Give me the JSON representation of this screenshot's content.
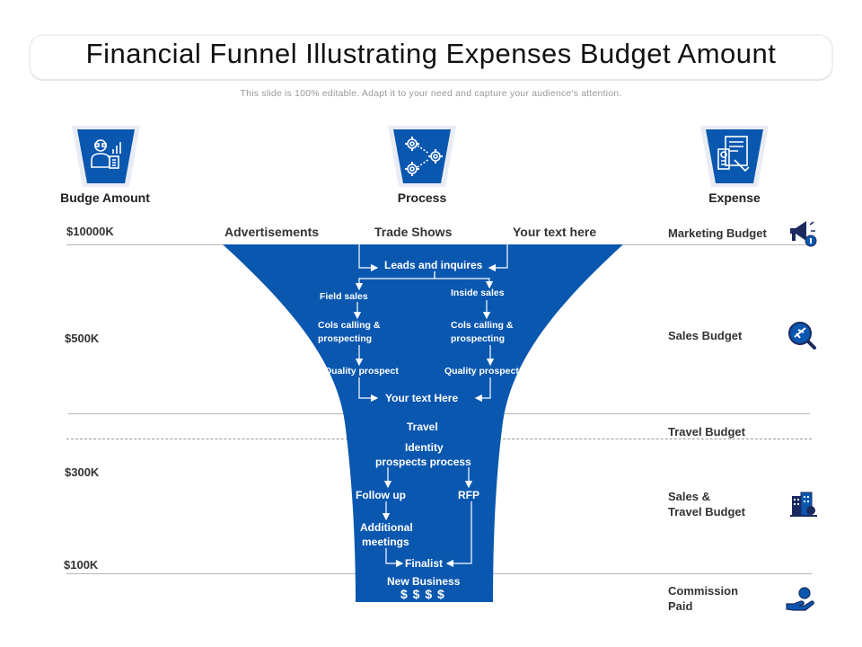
{
  "title": "Financial Funnel Illustrating Expenses Budget Amount",
  "subtitle": "This slide is 100% editable. Adapt it to your need and capture your audience's attention.",
  "columns": {
    "budget": "Budge Amount",
    "process": "Process",
    "expense": "Expense"
  },
  "amounts": [
    "$10000K",
    "$500K",
    "$300K",
    "$100K"
  ],
  "top_row": [
    "Advertisements",
    "Trade Shows",
    "Your text here"
  ],
  "expenses": {
    "marketing": "Marketing Budget",
    "sales": "Sales Budget",
    "travel": "Travel Budget",
    "sales_travel_1": "Sales &",
    "sales_travel_2": "Travel Budget",
    "commission_1": "Commission",
    "commission_2": "Paid"
  },
  "funnel": {
    "leads": "Leads and inquires",
    "field_sales": "Field sales",
    "inside_sales": "Inside sales",
    "cols_left_1": "Cols calling &",
    "cols_left_2": "prospecting",
    "cols_right_1": "Cols calling &",
    "cols_right_2": "prospecting",
    "quality_left": "Quality prospect",
    "quality_right": "Quality prospect",
    "your_text": "Your text Here",
    "travel": "Travel",
    "identity_1": "Identity",
    "identity_2": "prospects process",
    "follow_up": "Follow up",
    "rfp": "RFP",
    "additional_1": "Additional",
    "additional_2": "meetings",
    "finalist": "Finalist",
    "new_business": "New Business",
    "dollars": "$ $ $ $"
  },
  "colors": {
    "accent": "#0a57b0",
    "dark_icon": "#1b2a5e"
  },
  "icons": [
    "budget-person-icon",
    "process-gears-icon",
    "expense-invoice-icon",
    "megaphone-icon",
    "airplane-search-icon",
    "buildings-icon",
    "hand-money-icon"
  ]
}
